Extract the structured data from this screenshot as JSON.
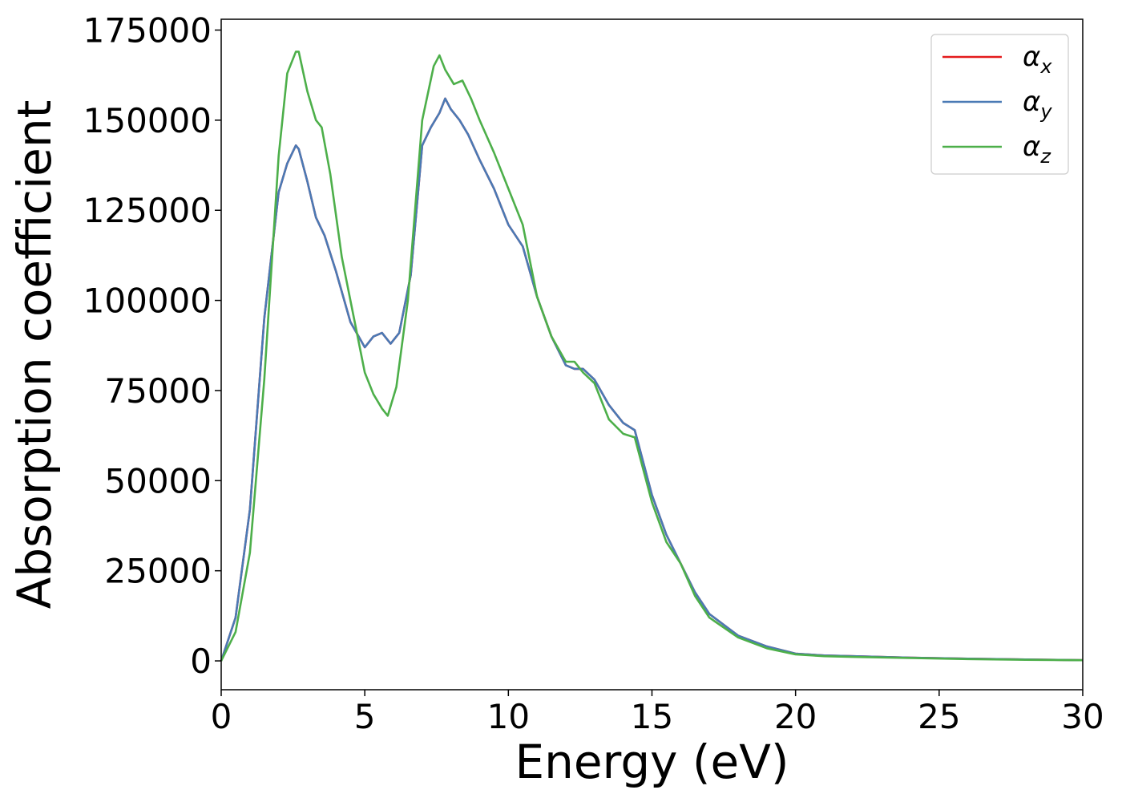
{
  "chart_data": {
    "type": "line",
    "title": "",
    "xlabel": "Energy (eV)",
    "ylabel": "Absorption coefficient",
    "xlim": [
      0,
      30
    ],
    "ylim": [
      -8000,
      178000
    ],
    "xticks": [
      0,
      5,
      10,
      15,
      20,
      25,
      30
    ],
    "yticks": [
      0,
      25000,
      50000,
      75000,
      100000,
      125000,
      150000,
      175000
    ],
    "grid": false,
    "legend_position": "top-right",
    "series": [
      {
        "name": "α",
        "subscript": "x",
        "color": "#e41a1c",
        "x": [
          0,
          0.5,
          1.0,
          1.5,
          2.0,
          2.3,
          2.6,
          2.7,
          3.0,
          3.3,
          3.6,
          4.0,
          4.5,
          5.0,
          5.3,
          5.6,
          5.9,
          6.2,
          6.6,
          7.0,
          7.3,
          7.6,
          7.8,
          8.0,
          8.3,
          8.6,
          9.0,
          9.5,
          10.0,
          10.5,
          11.0,
          11.5,
          12.0,
          12.3,
          12.6,
          13.0,
          13.5,
          14.0,
          14.4,
          15.0,
          15.5,
          16.0,
          16.5,
          17.0,
          18.0,
          19.0,
          20.0,
          21.0,
          22.0,
          24.0,
          26.0,
          28.0,
          30.0
        ],
        "y": [
          0,
          12000,
          42000,
          95000,
          130000,
          138000,
          143000,
          142000,
          133000,
          123000,
          118000,
          108000,
          94000,
          87000,
          90000,
          91000,
          88000,
          91000,
          107000,
          143000,
          148000,
          152000,
          156000,
          153000,
          150000,
          146000,
          139000,
          131000,
          121000,
          115000,
          101000,
          90000,
          82000,
          81000,
          81000,
          78000,
          71000,
          66000,
          64000,
          46000,
          35000,
          27000,
          19000,
          13000,
          7000,
          4000,
          2000,
          1500,
          1300,
          900,
          600,
          400,
          200
        ]
      },
      {
        "name": "α",
        "subscript": "y",
        "color": "#4a7ab5",
        "x": [
          0,
          0.5,
          1.0,
          1.5,
          2.0,
          2.3,
          2.6,
          2.7,
          3.0,
          3.3,
          3.6,
          4.0,
          4.5,
          5.0,
          5.3,
          5.6,
          5.9,
          6.2,
          6.6,
          7.0,
          7.3,
          7.6,
          7.8,
          8.0,
          8.3,
          8.6,
          9.0,
          9.5,
          10.0,
          10.5,
          11.0,
          11.5,
          12.0,
          12.3,
          12.6,
          13.0,
          13.5,
          14.0,
          14.4,
          15.0,
          15.5,
          16.0,
          16.5,
          17.0,
          18.0,
          19.0,
          20.0,
          21.0,
          22.0,
          24.0,
          26.0,
          28.0,
          30.0
        ],
        "y": [
          0,
          12000,
          42000,
          95000,
          130000,
          138000,
          143000,
          142000,
          133000,
          123000,
          118000,
          108000,
          94000,
          87000,
          90000,
          91000,
          88000,
          91000,
          107000,
          143000,
          148000,
          152000,
          156000,
          153000,
          150000,
          146000,
          139000,
          131000,
          121000,
          115000,
          101000,
          90000,
          82000,
          81000,
          81000,
          78000,
          71000,
          66000,
          64000,
          46000,
          35000,
          27000,
          19000,
          13000,
          7000,
          4000,
          2000,
          1500,
          1300,
          900,
          600,
          400,
          200
        ]
      },
      {
        "name": "α",
        "subscript": "z",
        "color": "#4daf4a",
        "x": [
          0,
          0.5,
          1.0,
          1.5,
          2.0,
          2.3,
          2.6,
          2.7,
          3.0,
          3.3,
          3.5,
          3.8,
          4.2,
          4.6,
          5.0,
          5.3,
          5.6,
          5.8,
          6.1,
          6.5,
          7.0,
          7.4,
          7.6,
          7.8,
          8.1,
          8.4,
          8.7,
          9.0,
          9.5,
          10.0,
          10.5,
          11.0,
          11.5,
          12.0,
          12.3,
          12.6,
          13.0,
          13.5,
          14.0,
          14.4,
          15.0,
          15.5,
          16.0,
          16.5,
          17.0,
          18.0,
          19.0,
          20.0,
          21.0,
          22.0,
          24.0,
          26.0,
          28.0,
          30.0
        ],
        "y": [
          0,
          8000,
          30000,
          78000,
          140000,
          163000,
          169000,
          169000,
          158000,
          150000,
          148000,
          135000,
          112000,
          96000,
          80000,
          74000,
          70000,
          68000,
          76000,
          100000,
          150000,
          165000,
          168000,
          164000,
          160000,
          161000,
          156000,
          150000,
          141000,
          131000,
          121000,
          101000,
          90000,
          83000,
          83000,
          80000,
          77000,
          67000,
          63000,
          62000,
          44000,
          33000,
          27000,
          18000,
          12000,
          6500,
          3500,
          1800,
          1300,
          1100,
          800,
          500,
          300,
          200
        ]
      }
    ]
  }
}
